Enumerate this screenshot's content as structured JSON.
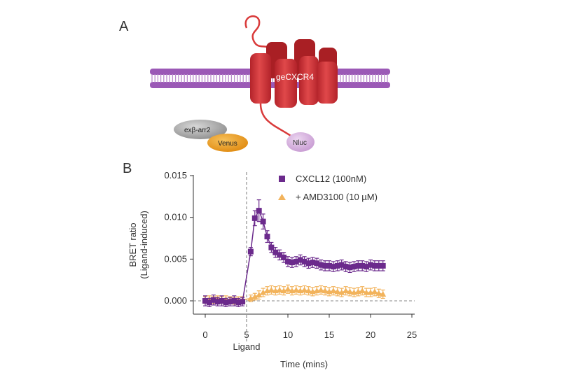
{
  "panels": {
    "a_label": "A",
    "b_label": "B"
  },
  "diagram": {
    "receptor_label": "geCXCR4",
    "arrestin_label": "exβ-arr2",
    "venus_label": "Venus",
    "nluc_label": "Nluc",
    "colors": {
      "membrane": "#9b59b6",
      "receptor": "#d93a3a",
      "receptor_dark": "#a91f24",
      "arrestin": "#a8a8a8",
      "venus": "#f0a030",
      "nluc": "#d8b4e2"
    }
  },
  "chart_data": {
    "type": "scatter",
    "title": "",
    "xlabel": "Time (mins)",
    "ylabel": "BRET ratio",
    "ylabel2": "(Ligand-induced)",
    "ligand_label": "Ligand",
    "ligand_time": 5,
    "xlim": [
      -1,
      25
    ],
    "ylim": [
      -0.0016,
      0.015
    ],
    "xticks": [
      0,
      5,
      10,
      15,
      20,
      25
    ],
    "xtick_labels": [
      "0",
      "5",
      "10",
      "15",
      "20",
      "25"
    ],
    "yticks": [
      0.0,
      0.005,
      0.01,
      0.015
    ],
    "ytick_labels": [
      "0.000",
      "0.005",
      "0.010",
      "0.015"
    ],
    "legend_position": "top-right",
    "series": [
      {
        "name": "CXCL12 (100nM)",
        "marker": "square",
        "color": "#6b2a8c",
        "x": [
          0,
          0.5,
          1,
          1.5,
          2,
          2.5,
          3,
          3.5,
          4,
          4.5,
          5.5,
          6,
          6.5,
          7,
          7.5,
          8,
          8.5,
          9,
          9.5,
          10,
          10.5,
          11,
          11.5,
          12,
          12.5,
          13,
          13.5,
          14,
          14.5,
          15,
          15.5,
          16,
          16.5,
          17,
          17.5,
          18,
          18.5,
          19,
          19.5,
          20,
          20.5,
          21,
          21.5
        ],
        "y": [
          0.0,
          -0.0002,
          0.0001,
          -0.0001,
          0.0,
          -0.0002,
          -0.0001,
          0.0,
          -0.0002,
          -0.0001,
          0.0059,
          0.0099,
          0.0108,
          0.0095,
          0.0077,
          0.0064,
          0.0058,
          0.0055,
          0.0052,
          0.0047,
          0.0046,
          0.0047,
          0.0049,
          0.0047,
          0.0045,
          0.0046,
          0.0045,
          0.0043,
          0.0042,
          0.0042,
          0.0041,
          0.0042,
          0.0043,
          0.0041,
          0.004,
          0.0041,
          0.0042,
          0.0042,
          0.0041,
          0.0043,
          0.0042,
          0.0042,
          0.0042
        ],
        "err": [
          0.0006,
          0.0005,
          0.0006,
          0.0005,
          0.0006,
          0.0005,
          0.0005,
          0.0006,
          0.0005,
          0.0005,
          0.0005,
          0.0009,
          0.0013,
          0.0009,
          0.0007,
          0.0006,
          0.0006,
          0.0006,
          0.0006,
          0.0006,
          0.0006,
          0.0006,
          0.0006,
          0.0006,
          0.0006,
          0.0006,
          0.0006,
          0.0006,
          0.0006,
          0.0006,
          0.0006,
          0.0006,
          0.0006,
          0.0006,
          0.0006,
          0.0006,
          0.0006,
          0.0006,
          0.0006,
          0.0006,
          0.0006,
          0.0006,
          0.0006
        ]
      },
      {
        "name": "+ AMD3100 (10 µM)",
        "marker": "triangle",
        "color": "#f2b35c",
        "x": [
          0,
          0.5,
          1,
          1.5,
          2,
          2.5,
          3,
          3.5,
          4,
          4.5,
          5.5,
          6,
          6.5,
          7,
          7.5,
          8,
          8.5,
          9,
          9.5,
          10,
          10.5,
          11,
          11.5,
          12,
          12.5,
          13,
          13.5,
          14,
          14.5,
          15,
          15.5,
          16,
          16.5,
          17,
          17.5,
          18,
          18.5,
          19,
          19.5,
          20,
          20.5,
          21,
          21.5
        ],
        "y": [
          0.0001,
          0.0002,
          0.0001,
          0.0002,
          0.0001,
          0.0002,
          0.0001,
          0.0,
          0.0001,
          0.0001,
          0.0003,
          0.0005,
          0.0007,
          0.001,
          0.0012,
          0.0013,
          0.0012,
          0.0013,
          0.0012,
          0.0014,
          0.0012,
          0.0013,
          0.0012,
          0.0013,
          0.0012,
          0.0011,
          0.0012,
          0.0013,
          0.0012,
          0.0011,
          0.0012,
          0.0011,
          0.001,
          0.0012,
          0.0011,
          0.001,
          0.0011,
          0.0012,
          0.001,
          0.001,
          0.0011,
          0.0009,
          0.0008
        ],
        "err": [
          0.0004,
          0.0004,
          0.0004,
          0.0004,
          0.0004,
          0.0004,
          0.0004,
          0.0004,
          0.0004,
          0.0004,
          0.0004,
          0.0004,
          0.0005,
          0.0005,
          0.0005,
          0.0005,
          0.0005,
          0.0005,
          0.0005,
          0.0005,
          0.0005,
          0.0005,
          0.0005,
          0.0005,
          0.0005,
          0.0005,
          0.0005,
          0.0005,
          0.0005,
          0.0005,
          0.0005,
          0.0005,
          0.0005,
          0.0005,
          0.0005,
          0.0005,
          0.0005,
          0.0005,
          0.0005,
          0.0005,
          0.0005,
          0.0005,
          0.0005
        ]
      }
    ]
  }
}
